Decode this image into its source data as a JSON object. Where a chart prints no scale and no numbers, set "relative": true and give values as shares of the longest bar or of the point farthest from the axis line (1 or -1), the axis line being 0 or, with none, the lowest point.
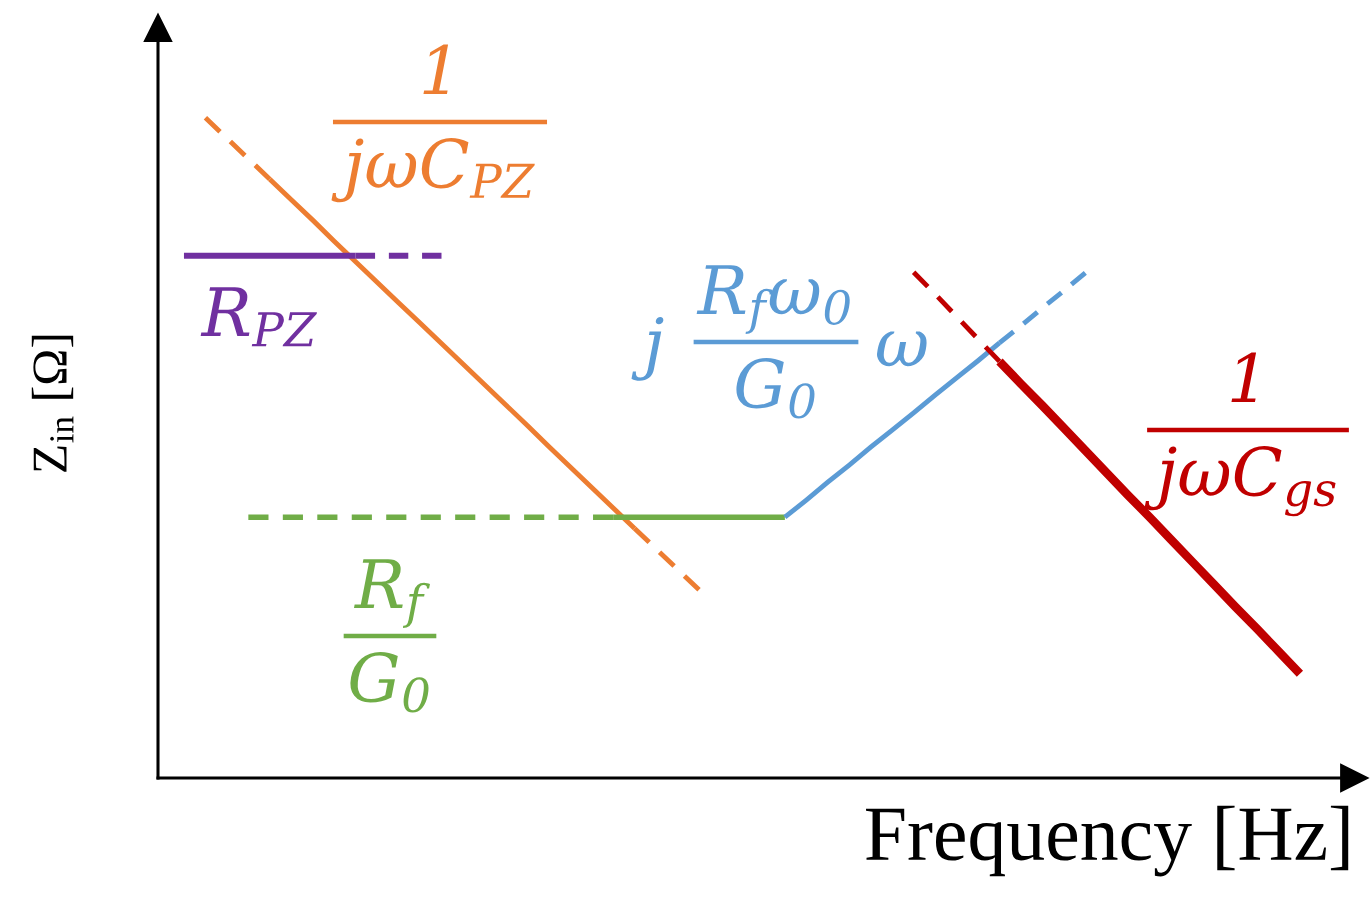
{
  "chart_data": {
    "type": "line",
    "relative": true,
    "xlabel": "Frequency [Hz]",
    "ylabel": "Z$_{in}$ [Ω]",
    "tick_labels": false,
    "categories": [
      null,
      null,
      null,
      null,
      null,
      null,
      null,
      null,
      null,
      null,
      null,
      null,
      null,
      null,
      null,
      null,
      null,
      null,
      null,
      null,
      null,
      null,
      null,
      null,
      null,
      null,
      null,
      null,
      null,
      null,
      null,
      null,
      null,
      null,
      null,
      null,
      null,
      null,
      null,
      null,
      null,
      null,
      null,
      null,
      null,
      null,
      null,
      null,
      null,
      null,
      null,
      null,
      null
    ],
    "series": [
      {
        "color": "#ed7d31",
        "line_style": "dashed",
        "values": [
          null,
          1.0,
          0.969,
          0.938,
          0.907,
          null,
          null,
          null,
          null,
          null,
          null,
          null,
          null,
          null,
          null,
          null,
          null,
          null,
          null,
          null,
          null,
          null,
          null,
          null,
          null,
          null,
          null,
          null,
          null,
          null,
          null,
          null,
          null,
          null,
          null,
          null,
          null,
          null,
          null,
          null,
          null,
          null,
          null,
          null,
          null,
          null,
          null,
          null,
          null,
          null,
          null,
          null,
          null
        ]
      },
      {
        "color": "#ed7d31",
        "line_style": "solid",
        "values": [
          null,
          null,
          null,
          null,
          0.907,
          0.876,
          0.845,
          0.813,
          0.782,
          0.751,
          0.72,
          0.689,
          0.658,
          0.627,
          0.596,
          0.565,
          0.534,
          0.502,
          0.471,
          0.44,
          0.409,
          0.378,
          null,
          null,
          null,
          null,
          null,
          null,
          null,
          null,
          null,
          null,
          null,
          null,
          null,
          null,
          null,
          null,
          null,
          null,
          null,
          null,
          null,
          null,
          null,
          null,
          null,
          null,
          null,
          null,
          null,
          null,
          null
        ]
      },
      {
        "color": "#ed7d31",
        "line_style": "dashed",
        "values": [
          null,
          null,
          null,
          null,
          null,
          null,
          null,
          null,
          null,
          null,
          null,
          null,
          null,
          null,
          null,
          null,
          null,
          null,
          null,
          null,
          null,
          0.378,
          0.347,
          0.316,
          0.285,
          null,
          null,
          null,
          null,
          null,
          null,
          null,
          null,
          null,
          null,
          null,
          null,
          null,
          null,
          null,
          null,
          null,
          null,
          null,
          null,
          null,
          null,
          null,
          null,
          null,
          null,
          null,
          null
        ]
      },
      {
        "color": "#7030a0",
        "line_style": "solid",
        "values": [
          0.791,
          0.791,
          0.791,
          0.791,
          0.791,
          0.791,
          0.791,
          0.791,
          0.791,
          null,
          null,
          null,
          null,
          null,
          null,
          null,
          null,
          null,
          null,
          null,
          null,
          null,
          null,
          null,
          null,
          null,
          null,
          null,
          null,
          null,
          null,
          null,
          null,
          null,
          null,
          null,
          null,
          null,
          null,
          null,
          null,
          null,
          null,
          null,
          null,
          null,
          null,
          null,
          null,
          null,
          null,
          null,
          null
        ]
      },
      {
        "color": "#7030a0",
        "line_style": "dashed",
        "values": [
          null,
          null,
          null,
          null,
          null,
          null,
          null,
          null,
          0.791,
          0.791,
          0.791,
          0.791,
          0.791,
          null,
          null,
          null,
          null,
          null,
          null,
          null,
          null,
          null,
          null,
          null,
          null,
          null,
          null,
          null,
          null,
          null,
          null,
          null,
          null,
          null,
          null,
          null,
          null,
          null,
          null,
          null,
          null,
          null,
          null,
          null,
          null,
          null,
          null,
          null,
          null,
          null,
          null,
          null,
          null
        ]
      },
      {
        "color": "#70ad47",
        "line_style": "dashed",
        "values": [
          null,
          null,
          null,
          0.395,
          0.395,
          0.395,
          0.395,
          0.395,
          0.395,
          0.395,
          0.395,
          0.395,
          0.395,
          0.395,
          0.395,
          0.395,
          0.395,
          0.395,
          0.395,
          0.395,
          0.395,
          null,
          null,
          null,
          null,
          null,
          null,
          null,
          null,
          null,
          null,
          null,
          null,
          null,
          null,
          null,
          null,
          null,
          null,
          null,
          null,
          null,
          null,
          null,
          null,
          null,
          null,
          null,
          null,
          null,
          null,
          null,
          null
        ]
      },
      {
        "color": "#70ad47",
        "line_style": "solid",
        "values": [
          null,
          null,
          null,
          null,
          null,
          null,
          null,
          null,
          null,
          null,
          null,
          null,
          null,
          null,
          null,
          null,
          null,
          null,
          null,
          null,
          0.395,
          0.395,
          0.395,
          0.395,
          0.395,
          0.395,
          0.395,
          0.395,
          0.395,
          null,
          null,
          null,
          null,
          null,
          null,
          null,
          null,
          null,
          null,
          null,
          null,
          null,
          null,
          null,
          null,
          null,
          null,
          null,
          null,
          null,
          null,
          null,
          null
        ]
      },
      {
        "color": "#5b9bd5",
        "line_style": "solid",
        "values": [
          null,
          null,
          null,
          null,
          null,
          null,
          null,
          null,
          null,
          null,
          null,
          null,
          null,
          null,
          null,
          null,
          null,
          null,
          null,
          null,
          null,
          null,
          null,
          null,
          null,
          null,
          null,
          null,
          0.395,
          0.421,
          0.448,
          0.474,
          0.501,
          0.527,
          0.553,
          0.58,
          0.606,
          0.632,
          0.659,
          null,
          null,
          null,
          null,
          null,
          null,
          null,
          null,
          null,
          null,
          null,
          null,
          null,
          null
        ]
      },
      {
        "color": "#5b9bd5",
        "line_style": "dashed",
        "values": [
          null,
          null,
          null,
          null,
          null,
          null,
          null,
          null,
          null,
          null,
          null,
          null,
          null,
          null,
          null,
          null,
          null,
          null,
          null,
          null,
          null,
          null,
          null,
          null,
          null,
          null,
          null,
          null,
          null,
          null,
          null,
          null,
          null,
          null,
          null,
          null,
          null,
          null,
          0.659,
          0.685,
          0.712,
          0.738,
          0.765,
          null,
          null,
          null,
          null,
          null,
          null,
          null,
          null,
          null,
          null
        ]
      },
      {
        "color": "#c00000",
        "line_style": "dashed",
        "values": [
          null,
          null,
          null,
          null,
          null,
          null,
          null,
          null,
          null,
          null,
          null,
          null,
          null,
          null,
          null,
          null,
          null,
          null,
          null,
          null,
          null,
          null,
          null,
          null,
          null,
          null,
          null,
          null,
          null,
          null,
          null,
          null,
          null,
          null,
          0.766,
          0.733,
          0.699,
          0.665,
          0.631,
          null,
          null,
          null,
          null,
          null,
          null,
          null,
          null,
          null,
          null,
          null,
          null,
          null,
          null
        ]
      },
      {
        "color": "#c00000",
        "line_style": "solid",
        "values": [
          null,
          null,
          null,
          null,
          null,
          null,
          null,
          null,
          null,
          null,
          null,
          null,
          null,
          null,
          null,
          null,
          null,
          null,
          null,
          null,
          null,
          null,
          null,
          null,
          null,
          null,
          null,
          null,
          null,
          null,
          null,
          null,
          null,
          null,
          null,
          null,
          null,
          null,
          0.631,
          0.597,
          0.564,
          0.53,
          0.496,
          0.462,
          0.428,
          0.395,
          0.361,
          0.327,
          0.293,
          0.259,
          0.226,
          0.192,
          0.158
        ]
      }
    ],
    "annotations": [
      "1\njωC$_{PZ}$",
      "R$_{PZ}$",
      "R$_{f}$\nG$_{0}$",
      "j",
      "R$_{f}$ω$_{0}$\nG$_{0}$",
      "ω",
      "1\njωC$_{gs}$"
    ]
  }
}
